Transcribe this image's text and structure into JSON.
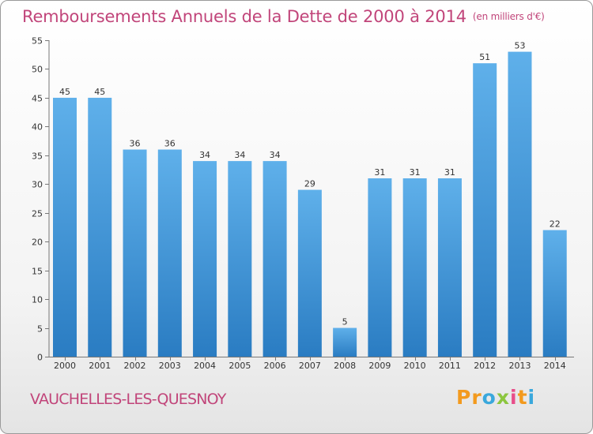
{
  "header": {
    "title": "Remboursements Annuels de la Dette de 2000 à 2014",
    "unit": "(en milliers d'€)"
  },
  "footer": {
    "commune": "VAUCHELLES-LES-QUESNOY",
    "logo": {
      "p1": "Pr",
      "p2": "o",
      "p3": "x",
      "p4": "i",
      "p5": "t",
      "p6": "i"
    }
  },
  "colors": {
    "bar_top": "#5fb0ea",
    "bar_bottom": "#2a7cc2",
    "title": "#c1457a"
  },
  "chart_data": {
    "type": "bar",
    "title": "Remboursements Annuels de la Dette de 2000 à 2014",
    "xlabel": "",
    "ylabel": "",
    "categories": [
      "2000",
      "2001",
      "2002",
      "2003",
      "2004",
      "2005",
      "2006",
      "2007",
      "2008",
      "2009",
      "2010",
      "2011",
      "2012",
      "2013",
      "2014"
    ],
    "values": [
      45,
      45,
      36,
      36,
      34,
      34,
      34,
      29,
      5,
      31,
      31,
      31,
      51,
      53,
      22
    ],
    "ylim": [
      0,
      55
    ],
    "yticks": [
      0,
      5,
      10,
      15,
      20,
      25,
      30,
      35,
      40,
      45,
      50,
      55
    ],
    "grid": false
  }
}
